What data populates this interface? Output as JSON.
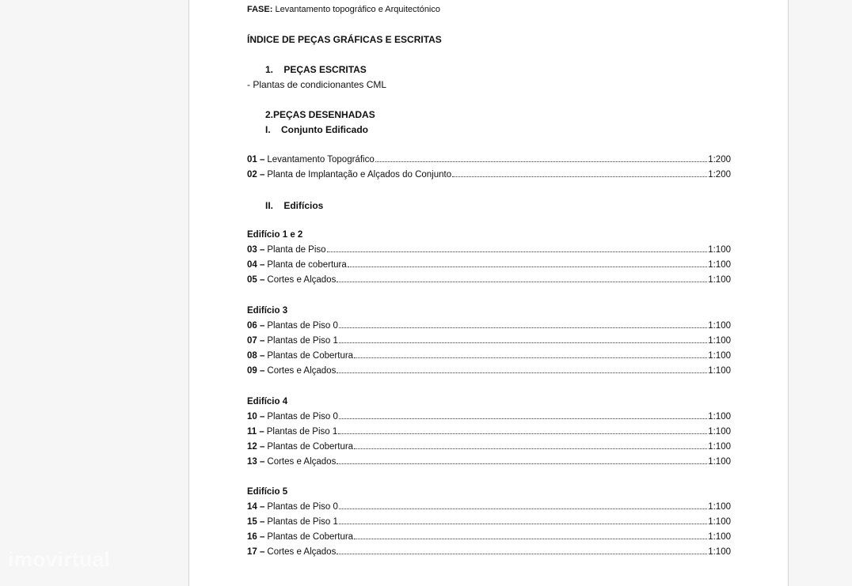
{
  "watermark": "imovirtual",
  "header": {
    "fase_label": "FASE:",
    "fase_value": "Levantamento topográfico e Arquitectónico"
  },
  "title": "ÍNDICE DE PEÇAS GRÁFICAS E ESCRITAS",
  "section1": {
    "heading": "1.    PEÇAS ESCRITAS",
    "item": "- Plantas de condicionantes CML"
  },
  "section2": {
    "heading": "2.PEÇAS DESENHADAS",
    "sub1": "I.    Conjunto Edificado",
    "sub2": "II.    Edifícios"
  },
  "conjunto": [
    {
      "num": "01 –",
      "label": "Levantamento Topográfico",
      "scale": "1:200"
    },
    {
      "num": "02 –",
      "label": "Planta de Implantação e Alçados do Conjunto",
      "scale": "1:200"
    }
  ],
  "edificios": [
    {
      "name": "Edifício 1 e 2",
      "items": [
        {
          "num": "03 –",
          "label": "Planta de Piso",
          "scale": "1:100"
        },
        {
          "num": "04 –",
          "label": "Planta de cobertura",
          "scale": "1:100"
        },
        {
          "num": "05 –",
          "label": "Cortes e Alçados",
          "scale": "1:100"
        }
      ]
    },
    {
      "name": "Edifício 3",
      "items": [
        {
          "num": "06 –",
          "label": "Plantas de Piso 0",
          "scale": "1:100"
        },
        {
          "num": "07 –",
          "label": "Plantas de Piso 1",
          "scale": "1:100"
        },
        {
          "num": "08 –",
          "label": "Plantas de Cobertura",
          "scale": "1:100"
        },
        {
          "num": "09 –",
          "label": "Cortes e Alçados",
          "scale": "1:100"
        }
      ]
    },
    {
      "name": "Edifício 4",
      "items": [
        {
          "num": "10 –",
          "label": "Plantas de Piso 0",
          "scale": "1:100"
        },
        {
          "num": "11 –",
          "label": "Plantas de Piso 1",
          "scale": "1:100"
        },
        {
          "num": "12 –",
          "label": "Plantas de Cobertura",
          "scale": "1:100"
        },
        {
          "num": "13 –",
          "label": "Cortes e Alçados",
          "scale": "1:100"
        }
      ]
    },
    {
      "name": "Edifício 5",
      "items": [
        {
          "num": "14 –",
          "label": "Plantas de Piso 0",
          "scale": "1:100"
        },
        {
          "num": "15 –",
          "label": "Plantas de Piso 1",
          "scale": "1:100"
        },
        {
          "num": "16 –",
          "label": "Plantas de Cobertura",
          "scale": "1:100"
        },
        {
          "num": "17 –",
          "label": "Cortes e Alçados",
          "scale": "1:100"
        }
      ]
    }
  ]
}
